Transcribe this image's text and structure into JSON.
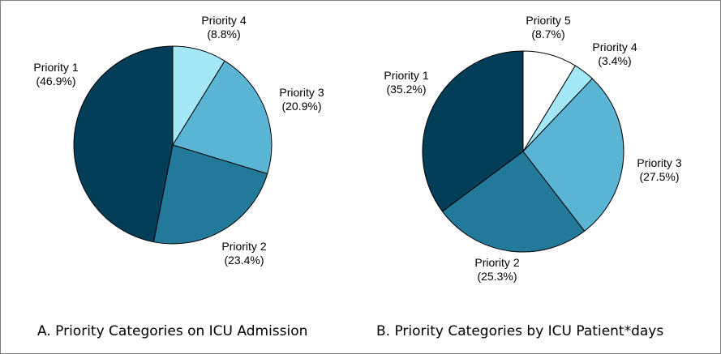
{
  "chart_data": [
    {
      "type": "pie",
      "title": "A. Priority Categories on ICU Admission",
      "slices": [
        {
          "label": "Priority 4",
          "value_text": "(8.8%)",
          "value": 8.8,
          "color": "#a4e8f8"
        },
        {
          "label": "Priority 3",
          "value_text": "(20.9%)",
          "value": 20.9,
          "color": "#5ab5d4"
        },
        {
          "label": "Priority 2",
          "value_text": "(23.4%)",
          "value": 23.4,
          "color": "#23799a"
        },
        {
          "label": "Priority 1",
          "value_text": "(46.9%)",
          "value": 46.9,
          "color": "#033e58"
        }
      ]
    },
    {
      "type": "pie",
      "title": "B. Priority Categories by ICU Patient*days",
      "slices": [
        {
          "label": "Priority 5",
          "value_text": "(8.7%)",
          "value": 8.7,
          "color": "#ffffff"
        },
        {
          "label": "Priority 4",
          "value_text": "(3.4%)",
          "value": 3.4,
          "color": "#a4e8f8"
        },
        {
          "label": "Priority 3",
          "value_text": "(27.5%)",
          "value": 27.5,
          "color": "#5ab5d4"
        },
        {
          "label": "Priority 2",
          "value_text": "(25.3%)",
          "value": 25.3,
          "color": "#23799a"
        },
        {
          "label": "Priority 1",
          "value_text": "(35.2%)",
          "value": 35.2,
          "color": "#033e58"
        }
      ]
    }
  ]
}
